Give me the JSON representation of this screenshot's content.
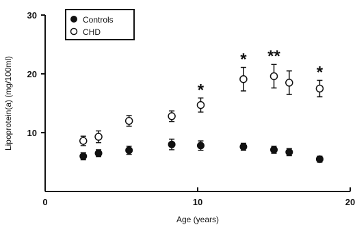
{
  "chart_data": {
    "type": "scatter",
    "title": "",
    "xlabel": "Age (years)",
    "ylabel": "Lipoprotein(a) (mg/100ml)",
    "xlim": [
      0,
      20
    ],
    "ylim": [
      0,
      30
    ],
    "x_ticks": [
      "0",
      "10",
      "20"
    ],
    "y_ticks": [
      "10",
      "20",
      "30"
    ],
    "grid": false,
    "legend": {
      "position": "top-left",
      "entries": [
        "Controls",
        "CHD"
      ]
    },
    "series": [
      {
        "name": "Controls",
        "marker": "filled-circle",
        "points": [
          {
            "x": 2.5,
            "y": 6.0,
            "err": 0.6
          },
          {
            "x": 3.5,
            "y": 6.5,
            "err": 0.6
          },
          {
            "x": 5.5,
            "y": 7.0,
            "err": 0.7
          },
          {
            "x": 8.3,
            "y": 8.0,
            "err": 0.9
          },
          {
            "x": 10.2,
            "y": 7.8,
            "err": 0.8
          },
          {
            "x": 13.0,
            "y": 7.6,
            "err": 0.6
          },
          {
            "x": 15.0,
            "y": 7.1,
            "err": 0.6
          },
          {
            "x": 16.0,
            "y": 6.7,
            "err": 0.6
          },
          {
            "x": 18.0,
            "y": 5.5,
            "err": 0.5
          }
        ]
      },
      {
        "name": "CHD",
        "marker": "open-circle",
        "points": [
          {
            "x": 2.5,
            "y": 8.6,
            "err": 0.8
          },
          {
            "x": 3.5,
            "y": 9.3,
            "err": 1.0
          },
          {
            "x": 5.5,
            "y": 12.0,
            "err": 0.9
          },
          {
            "x": 8.3,
            "y": 12.8,
            "err": 0.9
          },
          {
            "x": 10.2,
            "y": 14.7,
            "err": 1.2
          },
          {
            "x": 13.0,
            "y": 19.1,
            "err": 2.0
          },
          {
            "x": 15.0,
            "y": 19.6,
            "err": 2.0
          },
          {
            "x": 16.0,
            "y": 18.5,
            "err": 2.0
          },
          {
            "x": 18.0,
            "y": 17.5,
            "err": 1.4
          }
        ]
      }
    ],
    "annotations": [
      {
        "text": "*",
        "x": 10.2
      },
      {
        "text": "*",
        "x": 13.0
      },
      {
        "text": "**",
        "x": 15.0
      },
      {
        "text": "*",
        "x": 18.0
      }
    ]
  }
}
